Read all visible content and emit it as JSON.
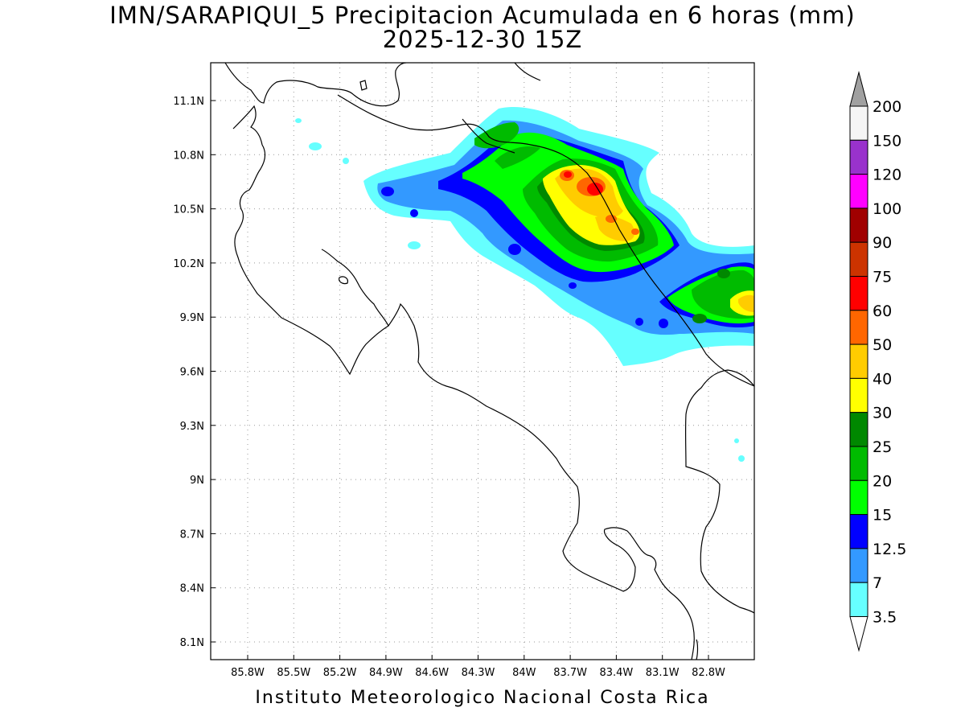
{
  "header": {
    "title_line1": "IMN/SARAPIQUI_5 Precipitacion Acumulada en 6 horas (mm)",
    "title_line2": "2025-12-30 15Z"
  },
  "map": {
    "lon_ticks": [
      "85.8W",
      "85.5W",
      "85.2W",
      "84.9W",
      "84.6W",
      "84.3W",
      "84W",
      "83.7W",
      "83.4W",
      "83.1W",
      "82.8W"
    ],
    "lat_ticks": [
      "11.1N",
      "10.8N",
      "10.5N",
      "10.2N",
      "9.9N",
      "9.6N",
      "9.3N",
      "9N",
      "8.7N",
      "8.4N",
      "8.1N"
    ],
    "grid": true,
    "region": "Costa Rica"
  },
  "colorbar": {
    "labels": [
      "200",
      "150",
      "120",
      "100",
      "90",
      "75",
      "60",
      "50",
      "40",
      "30",
      "25",
      "20",
      "15",
      "12.5",
      "7",
      "3.5"
    ],
    "colors": [
      "#f5f5f5",
      "#9932cc",
      "#ff00ff",
      "#a00000",
      "#cc3300",
      "#ff0000",
      "#ff6600",
      "#ffcc00",
      "#ffff00",
      "#008800",
      "#00bb00",
      "#00ff00",
      "#0000ff",
      "#3399ff",
      "#66ffff"
    ],
    "over_color": "#a0a0a0",
    "under_color": "#ffffff"
  },
  "footer": {
    "text": "Instituto Meteorologico Nacional Costa Rica"
  }
}
